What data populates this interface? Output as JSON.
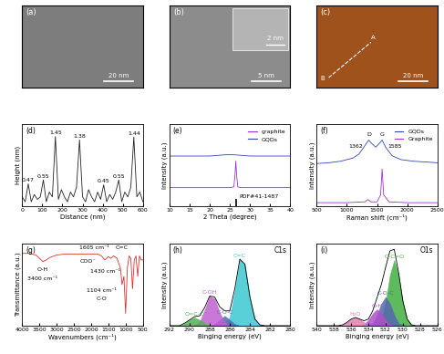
{
  "chart_data": [
    {
      "type": "image",
      "title": "(a)",
      "color": "#7d7d7d",
      "annotations": [
        "20 nm"
      ]
    },
    {
      "type": "image",
      "title": "(b)",
      "color": "#8c8c8c",
      "annotations": [
        "5 nm",
        "2 nm"
      ]
    },
    {
      "type": "image",
      "title": "(c)",
      "color": "#a0521d",
      "annotations": [
        "20 nm",
        "A",
        "B"
      ]
    },
    {
      "type": "line",
      "title": "(d)",
      "x_label": "Distance (nm)",
      "y_label": "Height (nm)",
      "x": [
        0,
        15,
        30,
        45,
        60,
        75,
        90,
        105,
        120,
        135,
        150,
        165,
        180,
        195,
        210,
        225,
        240,
        255,
        270,
        285,
        300,
        315,
        330,
        345,
        360,
        375,
        390,
        405,
        420,
        435,
        450,
        465,
        480,
        495,
        510,
        525,
        540,
        555,
        570,
        585,
        600
      ],
      "series": [
        {
          "color": "#222222",
          "values": [
            0.2,
            0.1,
            0.47,
            0.1,
            0.25,
            0.15,
            0.2,
            0.55,
            0.1,
            0.3,
            0.2,
            1.45,
            0.15,
            0.35,
            0.2,
            0.1,
            0.3,
            0.2,
            0.4,
            1.38,
            0.2,
            0.1,
            0.35,
            0.2,
            0.1,
            0.3,
            0.15,
            0.45,
            0.1,
            0.25,
            0.15,
            0.3,
            0.55,
            0.1,
            0.3,
            0.2,
            0.4,
            1.44,
            0.2,
            0.3,
            0.1
          ]
        }
      ],
      "annotations": [
        {
          "text": "0.47",
          "x": 30,
          "y": 0.47
        },
        {
          "text": "0.55",
          "x": 105,
          "y": 0.55
        },
        {
          "text": "1.45",
          "x": 165,
          "y": 1.45
        },
        {
          "text": "1.38",
          "x": 285,
          "y": 1.38
        },
        {
          "text": "0.45",
          "x": 405,
          "y": 0.45
        },
        {
          "text": "0.55",
          "x": 480,
          "y": 0.55
        },
        {
          "text": "1.44",
          "x": 555,
          "y": 1.44
        }
      ],
      "xlim": [
        0,
        600
      ],
      "xticks": [
        0,
        100,
        200,
        300,
        400,
        500,
        600
      ],
      "ylim": [
        0,
        1.7
      ],
      "yticks": [],
      "tick_labels": "x",
      "grid": false
    },
    {
      "type": "line",
      "title": "(e)",
      "x_label": "2 Theta (degree)",
      "y_label": "Intensity (a.u.)",
      "series": [
        {
          "name": "graphite",
          "color": "#a030d8",
          "x": [
            10,
            20,
            25,
            26,
            26.3,
            26.5,
            26.7,
            27,
            28,
            30,
            40
          ],
          "values": [
            0.3,
            0.3,
            0.3,
            0.31,
            0.5,
            0.72,
            0.5,
            0.31,
            0.3,
            0.3,
            0.3
          ]
        },
        {
          "name": "GQDs",
          "color": "#3046b8",
          "x": [
            10,
            15,
            20,
            22,
            24,
            26,
            28,
            30,
            35,
            40
          ],
          "values": [
            0.8,
            0.8,
            0.8,
            0.81,
            0.82,
            0.82,
            0.81,
            0.8,
            0.8,
            0.8
          ]
        },
        {
          "name": "PDF#41-1487",
          "type": "stick",
          "color": "#000000",
          "x": [
            26.5
          ],
          "values": [
            0.12
          ]
        }
      ],
      "legend": "upper right",
      "xlim": [
        10,
        40
      ],
      "xticks": [
        10,
        15,
        20,
        25,
        30,
        35,
        40
      ],
      "ylim": [
        0,
        1.3
      ],
      "yticks": [],
      "tick_labels": "x",
      "grid": false
    },
    {
      "type": "line",
      "title": "(f)",
      "x_label": "Raman shift (cm⁻¹)",
      "y_label": "Intensity (a.u.)",
      "series": [
        {
          "name": "GQDs",
          "color": "#3046b8",
          "x": [
            500,
            700,
            900,
            1100,
            1200,
            1300,
            1362,
            1420,
            1480,
            1530,
            1585,
            1650,
            1750,
            1900,
            2100,
            2300,
            2500
          ],
          "values": [
            0.55,
            0.56,
            0.58,
            0.62,
            0.67,
            0.78,
            0.85,
            0.8,
            0.76,
            0.8,
            0.85,
            0.75,
            0.65,
            0.6,
            0.58,
            0.57,
            0.56
          ]
        },
        {
          "name": "Graphite",
          "color": "#a030d8",
          "x": [
            500,
            1000,
            1300,
            1350,
            1400,
            1500,
            1560,
            1585,
            1610,
            1700,
            2000,
            2500
          ],
          "values": [
            0.05,
            0.05,
            0.06,
            0.09,
            0.06,
            0.06,
            0.15,
            0.48,
            0.15,
            0.06,
            0.05,
            0.05
          ]
        }
      ],
      "annotations": [
        {
          "text": "D",
          "x": 1362,
          "y": 0.88
        },
        {
          "text": "G",
          "x": 1585,
          "y": 0.88
        },
        {
          "text": "1362",
          "x": 1150,
          "y": 0.72
        },
        {
          "text": "1585",
          "x": 1800,
          "y": 0.72
        }
      ],
      "legend": "upper right",
      "xlim": [
        500,
        2500
      ],
      "xticks": [
        500,
        1000,
        1500,
        2000,
        2500
      ],
      "ylim": [
        0,
        1.05
      ],
      "yticks": [],
      "tick_labels": "x",
      "grid": false
    },
    {
      "type": "line",
      "title": "(g)",
      "x_label": "Wavenumbers (cm⁻¹)",
      "y_label": "Transmittance (a.u.)",
      "series": [
        {
          "color": "#e03030",
          "x": [
            4000,
            3800,
            3600,
            3500,
            3400,
            3300,
            3200,
            3000,
            2800,
            2500,
            2000,
            1800,
            1700,
            1605,
            1500,
            1430,
            1350,
            1250,
            1150,
            1104,
            1050,
            1000,
            950,
            900,
            850,
            800,
            750,
            700,
            650,
            600,
            550,
            500
          ],
          "values": [
            0.88,
            0.88,
            0.86,
            0.82,
            0.78,
            0.8,
            0.83,
            0.86,
            0.87,
            0.87,
            0.87,
            0.87,
            0.85,
            0.8,
            0.84,
            0.82,
            0.85,
            0.82,
            0.7,
            0.5,
            0.6,
            0.15,
            0.7,
            0.85,
            0.82,
            0.45,
            0.8,
            0.85,
            0.6,
            0.85,
            0.8,
            0.8
          ]
        }
      ],
      "annotations": [
        {
          "text": "O-H",
          "x": 3400,
          "y": 0.64
        },
        {
          "text": "3400 cm⁻¹",
          "x": 3400,
          "y": 0.53
        },
        {
          "text": "1605 cm⁻¹",
          "x": 1900,
          "y": 0.91
        },
        {
          "text": "COO⁻",
          "x": 2100,
          "y": 0.74
        },
        {
          "text": "C=C",
          "x": 1100,
          "y": 0.91
        },
        {
          "text": "1430 cm⁻¹",
          "x": 1600,
          "y": 0.62
        },
        {
          "text": "1104 cm⁻¹",
          "x": 1700,
          "y": 0.38
        },
        {
          "text": "C-O",
          "x": 1700,
          "y": 0.28
        }
      ],
      "xlim": [
        4000,
        500
      ],
      "xticks": [
        4000,
        3500,
        3000,
        2500,
        2000,
        1500,
        1000,
        500
      ],
      "ylim": [
        0,
        1
      ],
      "yticks": [],
      "tick_labels": "x",
      "grid": false
    },
    {
      "type": "area",
      "title": "(h)",
      "subtitle": "C1s",
      "x_label": "Binging energy (eV)",
      "y_label": "Intensity (a.u.)",
      "x": [
        280,
        280.5,
        281,
        281.5,
        282,
        282.5,
        283,
        283.5,
        284,
        284.5,
        285,
        285.5,
        286,
        286.5,
        287,
        287.5,
        288,
        288.5,
        289,
        289.5,
        290,
        290.5,
        291,
        291.5,
        292
      ],
      "series": [
        {
          "name": "C=C",
          "color": "#3cc8d0",
          "values": [
            0,
            0,
            0,
            0,
            0,
            0,
            0.01,
            0.08,
            0.35,
            0.75,
            0.81,
            0.43,
            0.11,
            0.02,
            0,
            0,
            0,
            0,
            0,
            0,
            0,
            0,
            0,
            0,
            0
          ]
        },
        {
          "name": "C-O-C",
          "color": "#5566b0",
          "values": [
            0,
            0,
            0,
            0,
            0,
            0,
            0,
            0,
            0,
            0,
            0,
            0.02,
            0.07,
            0.12,
            0.07,
            0.02,
            0,
            0,
            0,
            0,
            0,
            0,
            0,
            0,
            0
          ]
        },
        {
          "name": "C-OH",
          "color": "#c060d0",
          "values": [
            0,
            0,
            0,
            0,
            0,
            0,
            0,
            0,
            0,
            0,
            0,
            0,
            0,
            0.04,
            0.16,
            0.33,
            0.36,
            0.19,
            0.05,
            0.01,
            0,
            0,
            0,
            0,
            0
          ]
        },
        {
          "name": "O=C-O",
          "color": "#50b050",
          "values": [
            0,
            0,
            0,
            0,
            0,
            0,
            0,
            0,
            0,
            0,
            0,
            0,
            0,
            0,
            0,
            0,
            0,
            0.03,
            0.07,
            0.1,
            0.07,
            0.03,
            0,
            0,
            0
          ]
        },
        {
          "type": "line",
          "color": "#000000",
          "values": [
            0,
            0,
            0,
            0,
            0,
            0,
            0.01,
            0.08,
            0.35,
            0.75,
            0.81,
            0.45,
            0.18,
            0.18,
            0.23,
            0.35,
            0.36,
            0.22,
            0.12,
            0.11,
            0.07,
            0.03,
            0,
            0,
            0
          ]
        }
      ],
      "xlim": [
        292,
        280
      ],
      "xticks": [
        292,
        290,
        288,
        286,
        284,
        282,
        280
      ],
      "ylim": [
        0,
        1
      ],
      "yticks": [],
      "tick_labels": "x",
      "grid": false
    },
    {
      "type": "area",
      "title": "(i)",
      "subtitle": "O1s",
      "x_label": "Binging energy (eV)",
      "y_label": "Intensity (a.u.)",
      "x": [
        526,
        526.5,
        527,
        527.5,
        528,
        528.5,
        529,
        529.5,
        530,
        530.5,
        531,
        531.5,
        532,
        532.5,
        533,
        533.5,
        534,
        534.5,
        535,
        535.5,
        536,
        536.5,
        537,
        537.5,
        538,
        538.5,
        539,
        539.5,
        540
      ],
      "series": [
        {
          "name": "O-C=O",
          "color": "#40b040",
          "values": [
            0,
            0,
            0,
            0,
            0,
            0,
            0.01,
            0.08,
            0.29,
            0.62,
            0.8,
            0.62,
            0.29,
            0.08,
            0.01,
            0,
            0,
            0,
            0,
            0,
            0,
            0,
            0,
            0,
            0,
            0,
            0,
            0,
            0
          ]
        },
        {
          "name": "C-O-C",
          "color": "#5566b0",
          "values": [
            0,
            0,
            0,
            0,
            0,
            0,
            0,
            0,
            0.01,
            0.03,
            0.13,
            0.27,
            0.35,
            0.27,
            0.13,
            0.03,
            0.01,
            0,
            0,
            0,
            0,
            0,
            0,
            0,
            0,
            0,
            0,
            0,
            0
          ]
        },
        {
          "name": "O-H",
          "color": "#b050c8",
          "values": [
            0,
            0,
            0,
            0,
            0,
            0,
            0,
            0,
            0,
            0,
            0,
            0.02,
            0.07,
            0.15,
            0.2,
            0.15,
            0.07,
            0.02,
            0,
            0,
            0,
            0,
            0,
            0,
            0,
            0,
            0,
            0,
            0
          ]
        },
        {
          "name": "H₂O",
          "color": "#e080b0",
          "values": [
            0,
            0,
            0,
            0,
            0,
            0,
            0,
            0,
            0,
            0,
            0,
            0,
            0,
            0,
            0,
            0,
            0,
            0.04,
            0.08,
            0.1,
            0.08,
            0.04,
            0.01,
            0,
            0,
            0,
            0,
            0,
            0
          ]
        },
        {
          "type": "line",
          "color": "#000000",
          "values": [
            0,
            0,
            0,
            0,
            0,
            0,
            0.01,
            0.08,
            0.3,
            0.65,
            0.93,
            0.91,
            0.71,
            0.5,
            0.34,
            0.18,
            0.08,
            0.06,
            0.08,
            0.1,
            0.08,
            0.04,
            0.01,
            0,
            0,
            0,
            0,
            0,
            0
          ]
        }
      ],
      "xlim": [
        540,
        526
      ],
      "xticks": [
        540,
        538,
        536,
        534,
        532,
        530,
        528,
        526
      ],
      "ylim": [
        0,
        1
      ],
      "yticks": [],
      "tick_labels": "x",
      "grid": false
    }
  ]
}
